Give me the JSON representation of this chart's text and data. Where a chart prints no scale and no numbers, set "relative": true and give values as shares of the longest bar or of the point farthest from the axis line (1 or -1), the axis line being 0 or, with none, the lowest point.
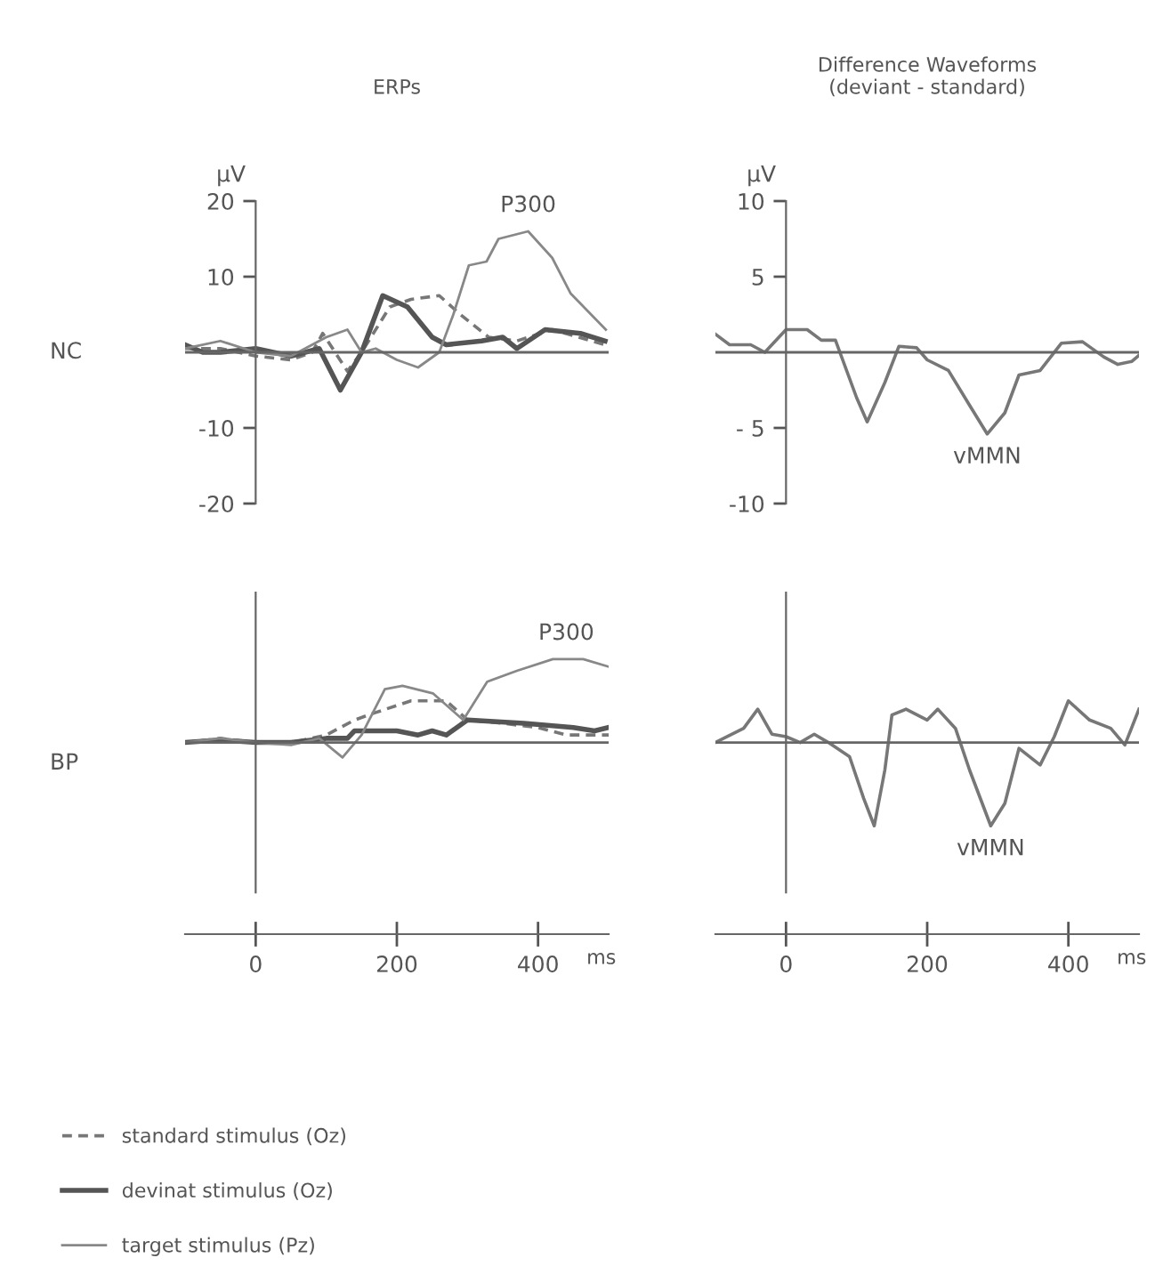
{
  "chart_data": [
    {
      "type": "line",
      "title": "ERPs",
      "ylabel": "μV",
      "annotations": [
        "NC",
        {
          "text": "P300",
          "x": 386,
          "y": 16
        }
      ],
      "xlim": [
        -100,
        500
      ],
      "ylim": [
        -20,
        20
      ],
      "yticks": [
        20,
        10,
        -10,
        -20
      ],
      "tick_labels": "y",
      "legend": "bottom left",
      "ref_lines": [
        {
          "axis": "y",
          "value": 0,
          "color": "#666666"
        }
      ],
      "series": [
        {
          "name": "standard stimulus (Oz)",
          "color": "#777777",
          "line_style": "dashed",
          "x": [
            -100,
            -50,
            0,
            50,
            80,
            95,
            130,
            150,
            190,
            220,
            260,
            290,
            330,
            370,
            420,
            495
          ],
          "values": [
            0.5,
            0.5,
            -0.5,
            -1,
            0,
            2.5,
            -2.5,
            0,
            6,
            7,
            7.5,
            5,
            2,
            1.5,
            3,
            1
          ]
        },
        {
          "name": "devinat stimulus (Oz)",
          "color": "#555555",
          "line_style": "solid",
          "x": [
            -100,
            -75,
            -50,
            0,
            50,
            90,
            120,
            150,
            180,
            215,
            250,
            270,
            320,
            350,
            370,
            410,
            460,
            495
          ],
          "values": [
            1,
            0,
            0,
            0.5,
            -0.5,
            0.5,
            -5,
            0,
            7.5,
            6,
            2,
            1,
            1.5,
            2,
            0.5,
            3,
            2.5,
            1.5
          ]
        },
        {
          "name": "target stimulus (Pz)",
          "color": "#888888",
          "line_style": "solid",
          "x": [
            -100,
            -50,
            0,
            50,
            100,
            130,
            150,
            170,
            200,
            230,
            260,
            280,
            302,
            327,
            344,
            386,
            420,
            446,
            496
          ],
          "values": [
            0.5,
            1.5,
            0,
            -0.5,
            2,
            3,
            0,
            0.5,
            -1,
            -2,
            0,
            5,
            11.5,
            12,
            15,
            16,
            12.5,
            7.8,
            3
          ]
        }
      ]
    },
    {
      "type": "line",
      "title": "Difference Waveforms\n(deviant - standard)",
      "ylabel": "μV",
      "annotations": [
        {
          "text": "vMMN",
          "x": 285,
          "y": -5.4
        }
      ],
      "xlim": [
        -100,
        500
      ],
      "ylim": [
        -10,
        10
      ],
      "yticks": [
        10,
        5,
        {
          "value": -5,
          "label": "- 5"
        },
        {
          "value": -10,
          "label": "-10"
        }
      ],
      "tick_labels": "y",
      "ref_lines": [
        {
          "axis": "y",
          "value": 0,
          "color": "#666666"
        }
      ],
      "series": [
        {
          "color": "#777777",
          "x": [
            -100,
            -80,
            -50,
            -30,
            0,
            30,
            50,
            70,
            100,
            115,
            140,
            160,
            185,
            200,
            230,
            260,
            285,
            310,
            330,
            360,
            390,
            420,
            450,
            470,
            490,
            500
          ],
          "values": [
            1.2,
            0.5,
            0.5,
            0,
            1.5,
            1.5,
            0.8,
            0.8,
            -3,
            -4.6,
            -2,
            0.4,
            0.3,
            -0.5,
            -1.2,
            -3.5,
            -5.4,
            -4,
            -1.5,
            -1.2,
            0.6,
            0.7,
            -0.3,
            -0.8,
            -0.6,
            -0.2
          ]
        }
      ]
    },
    {
      "type": "line",
      "relative": true,
      "xlabel": "ms",
      "annotations": [
        "BP",
        {
          "text": "P300",
          "x": 440,
          "y": 1
        }
      ],
      "xlim": [
        -100,
        500
      ],
      "xticks": [
        0,
        200,
        400
      ],
      "tick_labels": "x",
      "series": [
        {
          "color": "#777777",
          "line_style": "dashed",
          "x": [
            -100,
            -50,
            0,
            50,
            100,
            140,
            170,
            220,
            270,
            300,
            350,
            400,
            440,
            500
          ],
          "values": [
            0,
            0.05,
            0,
            0,
            0.09,
            0.27,
            0.36,
            0.5,
            0.5,
            0.27,
            0.23,
            0.18,
            0.09,
            0.09
          ]
        },
        {
          "color": "#555555",
          "line_style": "solid",
          "x": [
            -100,
            -50,
            0,
            50,
            100,
            130,
            140,
            200,
            230,
            250,
            270,
            300,
            380,
            450,
            480,
            500
          ],
          "values": [
            0,
            0.03,
            0,
            0,
            0.05,
            0.05,
            0.14,
            0.14,
            0.09,
            0.14,
            0.09,
            0.27,
            0.23,
            0.18,
            0.14,
            0.18
          ]
        },
        {
          "color": "#888888",
          "line_style": "solid",
          "x": [
            -100,
            -50,
            0,
            50,
            90,
            123,
            150,
            183,
            208,
            251,
            294,
            328,
            370,
            421,
            464,
            500
          ],
          "values": [
            0,
            0.05,
            0,
            -0.03,
            0.05,
            -0.18,
            0.09,
            0.64,
            0.68,
            0.59,
            0.27,
            0.73,
            0.86,
            1,
            1,
            0.91
          ]
        }
      ]
    },
    {
      "type": "line",
      "relative": true,
      "xlabel": "ms",
      "annotations": [
        {
          "text": "vMMN",
          "x": 290,
          "y": -1
        }
      ],
      "xlim": [
        -100,
        500
      ],
      "xticks": [
        0,
        200,
        400
      ],
      "tick_labels": "x",
      "series": [
        {
          "color": "#777777",
          "x": [
            -100,
            -60,
            -40,
            -20,
            0,
            20,
            40,
            60,
            90,
            110,
            125,
            140,
            150,
            170,
            200,
            215,
            240,
            260,
            290,
            310,
            330,
            360,
            380,
            400,
            430,
            460,
            480,
            500
          ],
          "values": [
            0,
            0.17,
            0.4,
            0.1,
            0.07,
            0,
            0.1,
            0,
            -0.17,
            -0.67,
            -1,
            -0.33,
            0.33,
            0.4,
            0.27,
            0.4,
            0.17,
            -0.33,
            -1,
            -0.73,
            -0.07,
            -0.27,
            0.07,
            0.5,
            0.27,
            0.17,
            -0.03,
            0.4
          ]
        }
      ]
    }
  ]
}
